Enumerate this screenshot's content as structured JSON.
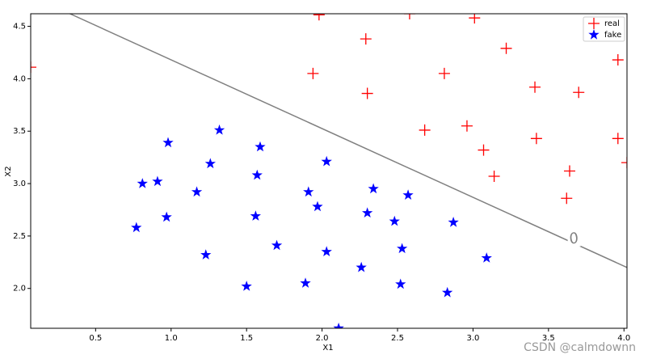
{
  "chart_data": {
    "type": "scatter",
    "x_label": "X1",
    "y_label": "X2",
    "watermark": "CSDN @calmdownn",
    "xlim": [
      0.07,
      4.02
    ],
    "ylim": [
      1.62,
      4.62
    ],
    "xticks": [
      0.5,
      {
        "value": 1.0,
        "label": "1.0"
      },
      1.5,
      {
        "value": 2.0,
        "label": "2.0"
      },
      2.5,
      {
        "value": 3.0,
        "label": "3.0"
      },
      3.5,
      {
        "value": 4.0,
        "label": "4.0"
      }
    ],
    "yticks": [
      {
        "value": 2.0,
        "label": "2.0"
      },
      2.5,
      {
        "value": 3.0,
        "label": "3.0"
      },
      3.5,
      {
        "value": 4.0,
        "label": "4.0"
      },
      4.5
    ],
    "legend": "upper right",
    "series": [
      {
        "name": "real",
        "color": "#ff0000",
        "marker": "plus",
        "x": [
          0.07,
          1.98,
          2.58,
          3.01,
          2.29,
          3.22,
          3.96,
          1.94,
          2.81,
          3.41,
          3.7,
          2.3,
          2.68,
          2.96,
          3.42,
          3.96,
          3.07,
          3.14,
          3.64,
          3.62,
          4.02
        ],
        "values": [
          4.11,
          4.61,
          4.62,
          4.58,
          4.38,
          4.29,
          4.18,
          4.05,
          4.05,
          3.92,
          3.87,
          3.86,
          3.51,
          3.55,
          3.43,
          3.43,
          3.32,
          3.07,
          3.12,
          2.86,
          3.2
        ]
      },
      {
        "name": "fake",
        "color": "#0000ff",
        "marker": "star",
        "x": [
          1.32,
          0.98,
          1.59,
          1.26,
          2.03,
          1.57,
          0.91,
          0.81,
          1.17,
          1.91,
          2.34,
          2.57,
          1.97,
          0.97,
          1.56,
          2.3,
          2.48,
          2.87,
          0.77,
          1.7,
          2.53,
          1.23,
          2.03,
          3.09,
          2.26,
          1.5,
          1.89,
          2.52,
          2.83,
          2.11
        ],
        "values": [
          3.51,
          3.39,
          3.35,
          3.19,
          3.21,
          3.08,
          3.02,
          3.0,
          2.92,
          2.92,
          2.95,
          2.89,
          2.78,
          2.68,
          2.69,
          2.72,
          2.64,
          2.63,
          2.58,
          2.41,
          2.38,
          2.32,
          2.35,
          2.29,
          2.2,
          2.02,
          2.05,
          2.04,
          1.96,
          1.62
        ]
      }
    ],
    "boundary": {
      "color": "#808080",
      "x": [
        0.33,
        4.02
      ],
      "values": [
        4.62,
        2.2
      ]
    },
    "contour_label": {
      "text": "0",
      "x": 3.67,
      "y": 2.47
    }
  }
}
